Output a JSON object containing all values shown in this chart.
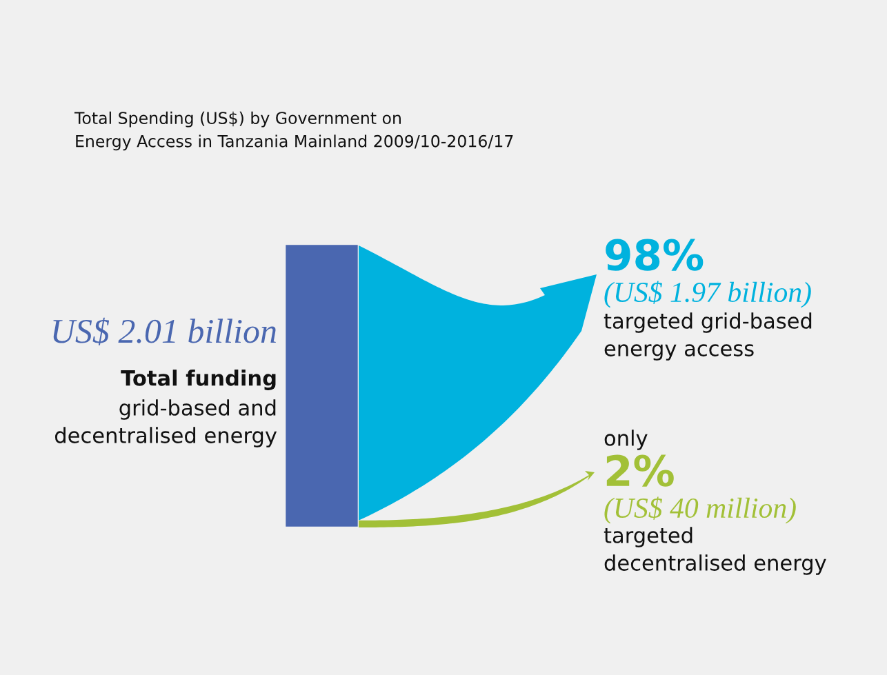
{
  "chart_data": {
    "type": "other",
    "title": "Total Spending (US$) by Government on\nEnergy Access in Tanzania Mainland 2009/10-2016/17",
    "categories": [
      "targeted grid-based\nenergy access",
      "targeted\ndecentralised energy"
    ],
    "values": [
      98,
      2
    ],
    "value_labels": [
      "98%",
      "2%"
    ],
    "colors": [
      "#00b2de",
      "#a2c037"
    ],
    "color": "#4a67b0",
    "annotations": [
      "US$ 2.01 billion",
      "Total funding",
      "grid-based and\ndecentralised energy",
      "(US$ 1.97 billion)",
      "only",
      "(US$ 40 million)"
    ]
  }
}
